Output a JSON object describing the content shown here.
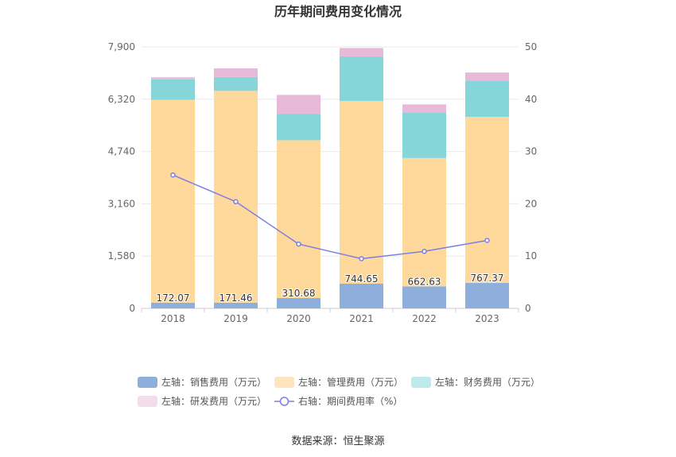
{
  "chart_data": {
    "type": "bar",
    "title": "历年期间费用变化情况",
    "categories": [
      "2018",
      "2019",
      "2020",
      "2021",
      "2022",
      "2023"
    ],
    "y_left": {
      "ticks": [
        "0",
        "1,580",
        "3,160",
        "4,740",
        "6,320",
        "7,900"
      ],
      "range": [
        0,
        7900
      ]
    },
    "y_right": {
      "ticks": [
        "0",
        "10",
        "20",
        "30",
        "40",
        "50"
      ],
      "range": [
        0,
        50
      ]
    },
    "series": [
      {
        "name": "左轴：销售费用（万元）",
        "axis": "left",
        "stack": true,
        "color": "#8eaedc",
        "values": [
          172.07,
          171.46,
          310.68,
          744.65,
          662.63,
          767.37
        ],
        "labels": [
          "172.07",
          "171.46",
          "310.68",
          "744.65",
          "662.63",
          "767.37"
        ]
      },
      {
        "name": "左轴：管理费用（万元）",
        "axis": "left",
        "stack": true,
        "color": "#fed99b",
        "values": [
          6130,
          6400,
          4770,
          5520,
          3880,
          5020
        ]
      },
      {
        "name": "左轴：财务费用（万元）",
        "axis": "left",
        "stack": true,
        "color": "#86d5d9",
        "values": [
          620,
          420,
          800,
          1350,
          1380,
          1090
        ]
      },
      {
        "name": "左轴：研发费用（万元）",
        "axis": "left",
        "stack": true,
        "color": "#e8b9d9",
        "values": [
          60,
          260,
          570,
          250,
          240,
          250
        ]
      },
      {
        "name": "右轴：期间费用率（%）",
        "axis": "right",
        "type": "line",
        "color": "#7b7fe6",
        "values": [
          25.5,
          20.4,
          12.3,
          9.5,
          10.9,
          13.0
        ]
      }
    ],
    "legend": {
      "position": "bottom",
      "colors": [
        "#8eaedc",
        "#fee5bf",
        "#bfeaec",
        "#f3dcec",
        "#7b7fe6"
      ]
    },
    "grid": true
  },
  "footer": {
    "source": "数据来源：恒生聚源"
  }
}
